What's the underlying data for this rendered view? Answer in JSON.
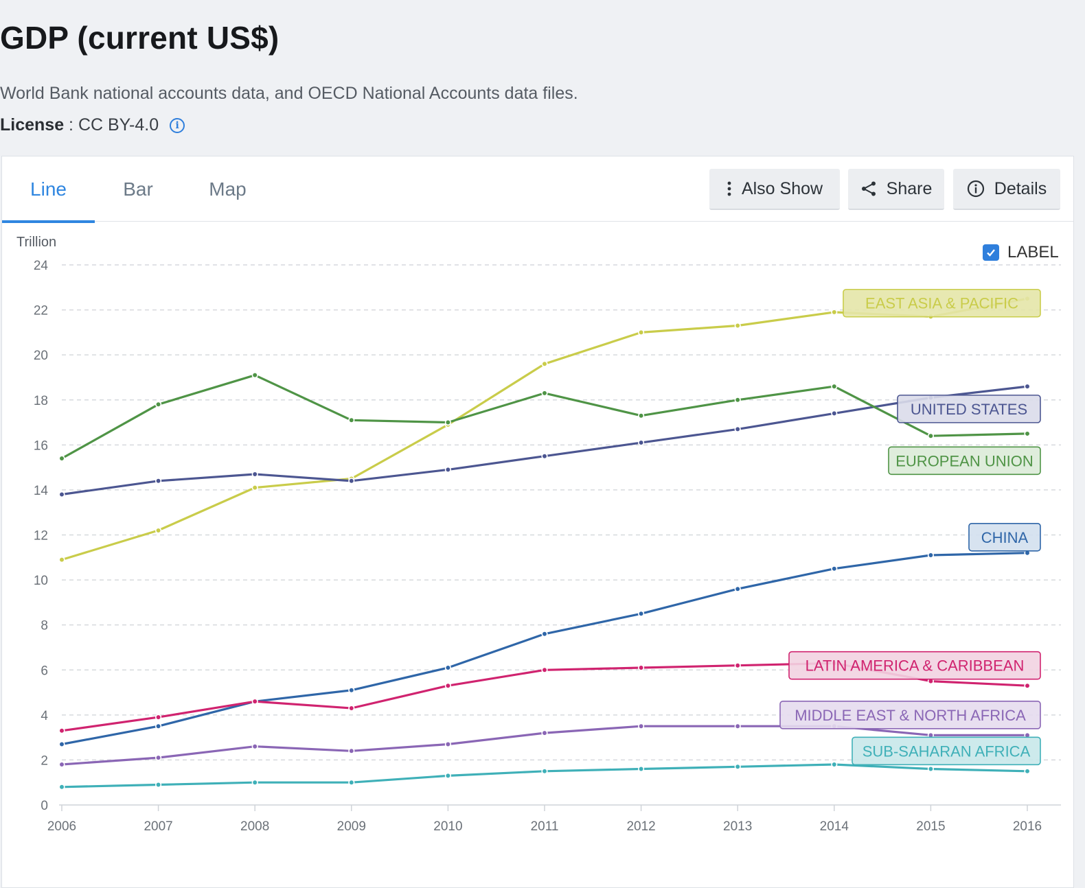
{
  "header": {
    "title": "GDP (current US$)",
    "source": "World Bank national accounts data, and OECD National Accounts data files.",
    "license_label": "License",
    "license_sep": " : ",
    "license_value": "CC BY-4.0"
  },
  "tabs": [
    {
      "label": "Line",
      "active": true
    },
    {
      "label": "Bar",
      "active": false
    },
    {
      "label": "Map",
      "active": false
    }
  ],
  "toolbar": {
    "also_show": "Also Show",
    "share": "Share",
    "details": "Details"
  },
  "label_toggle": {
    "text": "LABEL",
    "checked": true
  },
  "icons": [
    "info-icon",
    "vertical-dots-icon",
    "share-icon",
    "info-circle-icon",
    "checkmark-icon"
  ],
  "colors": {
    "accent": "#2f86e0",
    "grid": "#d6d9dd"
  },
  "chart_data": {
    "type": "line",
    "ylabel": "Trillion",
    "ylim": [
      0,
      24
    ],
    "yticks": [
      0,
      2,
      4,
      6,
      8,
      10,
      12,
      14,
      16,
      18,
      20,
      22,
      24
    ],
    "x": [
      2006,
      2007,
      2008,
      2009,
      2010,
      2011,
      2012,
      2013,
      2014,
      2015,
      2016
    ],
    "grid": true,
    "legend": "inline-labels-right",
    "series": [
      {
        "name": "EAST ASIA & PACIFIC",
        "color": "#c9cc4a",
        "label_bg": "#e4e6a8",
        "values": [
          10.9,
          12.2,
          14.1,
          14.5,
          16.9,
          19.6,
          21.0,
          21.3,
          21.9,
          21.7,
          22.5
        ]
      },
      {
        "name": "UNITED STATES",
        "color": "#4c5691",
        "label_bg": "#dadcea",
        "values": [
          13.8,
          14.4,
          14.7,
          14.4,
          14.9,
          15.5,
          16.1,
          16.7,
          17.4,
          18.1,
          18.6
        ]
      },
      {
        "name": "EUROPEAN UNION",
        "color": "#4f9446",
        "label_bg": "#dcebd8",
        "values": [
          15.4,
          17.8,
          19.1,
          17.1,
          17.0,
          18.3,
          17.3,
          18.0,
          18.6,
          16.4,
          16.5
        ]
      },
      {
        "name": "CHINA",
        "color": "#2f66a8",
        "label_bg": "#d3e0ee",
        "values": [
          2.7,
          3.5,
          4.6,
          5.1,
          6.1,
          7.6,
          8.5,
          9.6,
          10.5,
          11.1,
          11.2
        ]
      },
      {
        "name": "LATIN AMERICA & CARIBBEAN",
        "color": "#d0236f",
        "label_bg": "#f2d3e1",
        "values": [
          3.3,
          3.9,
          4.6,
          4.3,
          5.3,
          6.0,
          6.1,
          6.2,
          6.3,
          5.5,
          5.3
        ]
      },
      {
        "name": "MIDDLE EAST & NORTH AFRICA",
        "color": "#8a66b5",
        "label_bg": "#e5dcee",
        "values": [
          1.8,
          2.1,
          2.6,
          2.4,
          2.7,
          3.2,
          3.5,
          3.5,
          3.5,
          3.1,
          3.1
        ]
      },
      {
        "name": "SUB-SAHARAN AFRICA",
        "color": "#3fb0b8",
        "label_bg": "#c8e8ea",
        "values": [
          0.8,
          0.9,
          1.0,
          1.0,
          1.3,
          1.5,
          1.6,
          1.7,
          1.8,
          1.6,
          1.5
        ]
      }
    ]
  }
}
